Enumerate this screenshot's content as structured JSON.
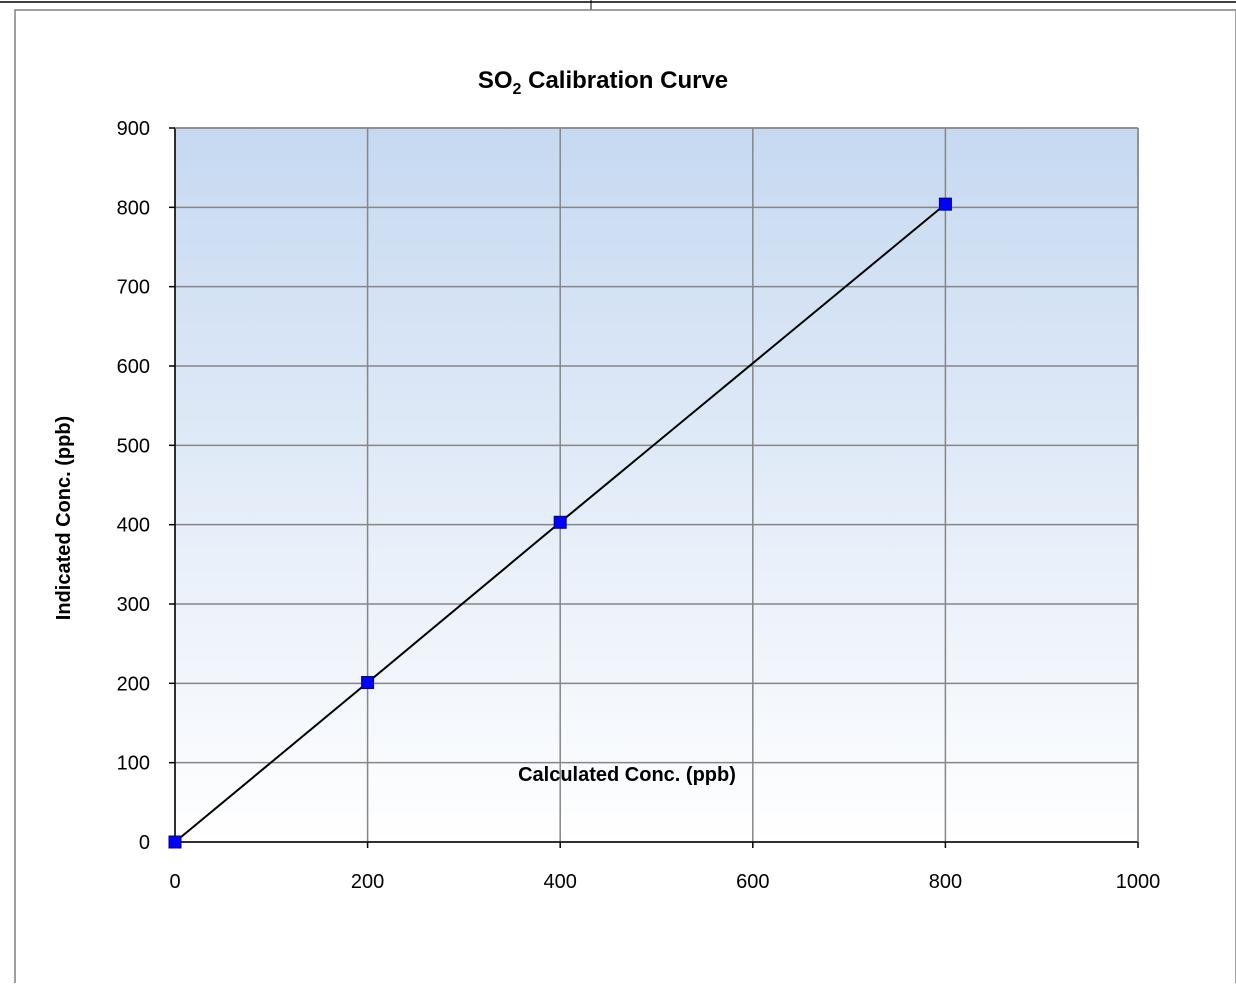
{
  "chart_data": {
    "type": "line",
    "title": "SO",
    "title_subscript": "2",
    "title_suffix": " Calibration Curve",
    "xlabel": "Calculated Conc. (ppb)",
    "ylabel": "Indicated Conc. (ppb)",
    "xlim": [
      0,
      1000
    ],
    "ylim": [
      0,
      900
    ],
    "x_ticks": [
      0,
      200,
      400,
      600,
      800,
      1000
    ],
    "y_ticks": [
      0,
      100,
      200,
      300,
      400,
      500,
      600,
      700,
      800,
      900
    ],
    "grid": true,
    "legend": "none",
    "series": [
      {
        "x": [
          0,
          200,
          400,
          800
        ],
        "y": [
          0,
          201,
          403,
          804
        ],
        "line_color": "#000000",
        "marker": "square",
        "marker_color": "#0000ff"
      }
    ],
    "plot_background": {
      "top_color": "#c6d9f1",
      "bottom_color": "#ffffff"
    },
    "grid_color": "#868686"
  }
}
